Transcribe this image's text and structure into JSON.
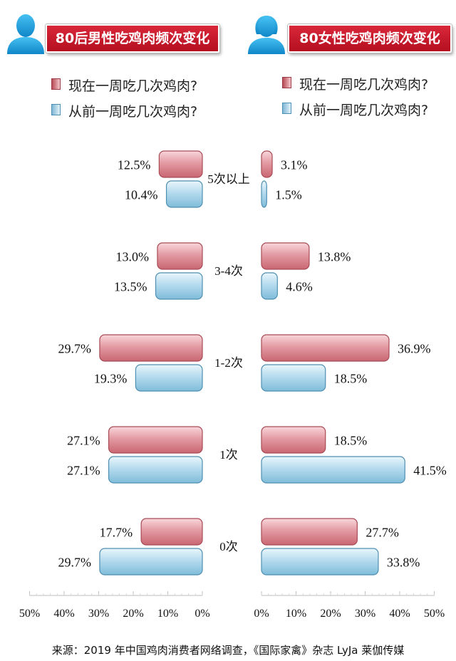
{
  "source": "来源：2019 年中国鸡肉消费者网络调查，《国际家禽》杂志 LyJa 莱伽传媒",
  "colors": {
    "title_red": "#c81e2e",
    "now_bar": "#e9a2aa",
    "before_bar": "#b9dcee",
    "icon_blue": "#1fa3e0"
  },
  "chart_data": [
    {
      "type": "bar",
      "orientation": "horizontal",
      "title": "80后男性吃鸡肉频次变化",
      "legend": [
        "现在一周吃几次鸡肉?",
        "从前一周吃几次鸡肉?"
      ],
      "categories": [
        "5次以上",
        "3-4次",
        "1-2次",
        "1次",
        "0次"
      ],
      "series": [
        {
          "name": "现在一周吃几次鸡肉?",
          "values": [
            12.5,
            13.0,
            29.7,
            27.1,
            17.7
          ],
          "labels": [
            "12.5%",
            "13.0%",
            "29.7%",
            "27.1%",
            "17.7%"
          ]
        },
        {
          "name": "从前一周吃几次鸡肉?",
          "values": [
            10.4,
            13.5,
            19.3,
            27.1,
            29.7
          ],
          "labels": [
            "10.4%",
            "13.5%",
            "19.3%",
            "27.1%",
            "29.7%"
          ]
        }
      ],
      "xlim": [
        0,
        50
      ],
      "ticks": [
        "50%",
        "40%",
        "30%",
        "20%",
        "10%",
        "0%"
      ],
      "reversed": true
    },
    {
      "type": "bar",
      "orientation": "horizontal",
      "title": "80女性吃鸡肉频次变化",
      "legend": [
        "现在一周吃几次鸡肉?",
        "从前一周吃几次鸡肉?"
      ],
      "categories": [
        "5次以上",
        "3-4次",
        "1-2次",
        "1次",
        "0次"
      ],
      "series": [
        {
          "name": "现在一周吃几次鸡肉?",
          "values": [
            3.1,
            13.8,
            36.9,
            18.5,
            27.7
          ],
          "labels": [
            "3.1%",
            "13.8%",
            "36.9%",
            "18.5%",
            "27.7%"
          ]
        },
        {
          "name": "从前一周吃几次鸡肉?",
          "values": [
            1.5,
            4.6,
            18.5,
            41.5,
            33.8
          ],
          "labels": [
            "1.5%",
            "4.6%",
            "18.5%",
            "41.5%",
            "33.8%"
          ]
        }
      ],
      "xlim": [
        0,
        50
      ],
      "ticks": [
        "0%",
        "10%",
        "20%",
        "30%",
        "40%",
        "50%"
      ],
      "reversed": false
    }
  ]
}
